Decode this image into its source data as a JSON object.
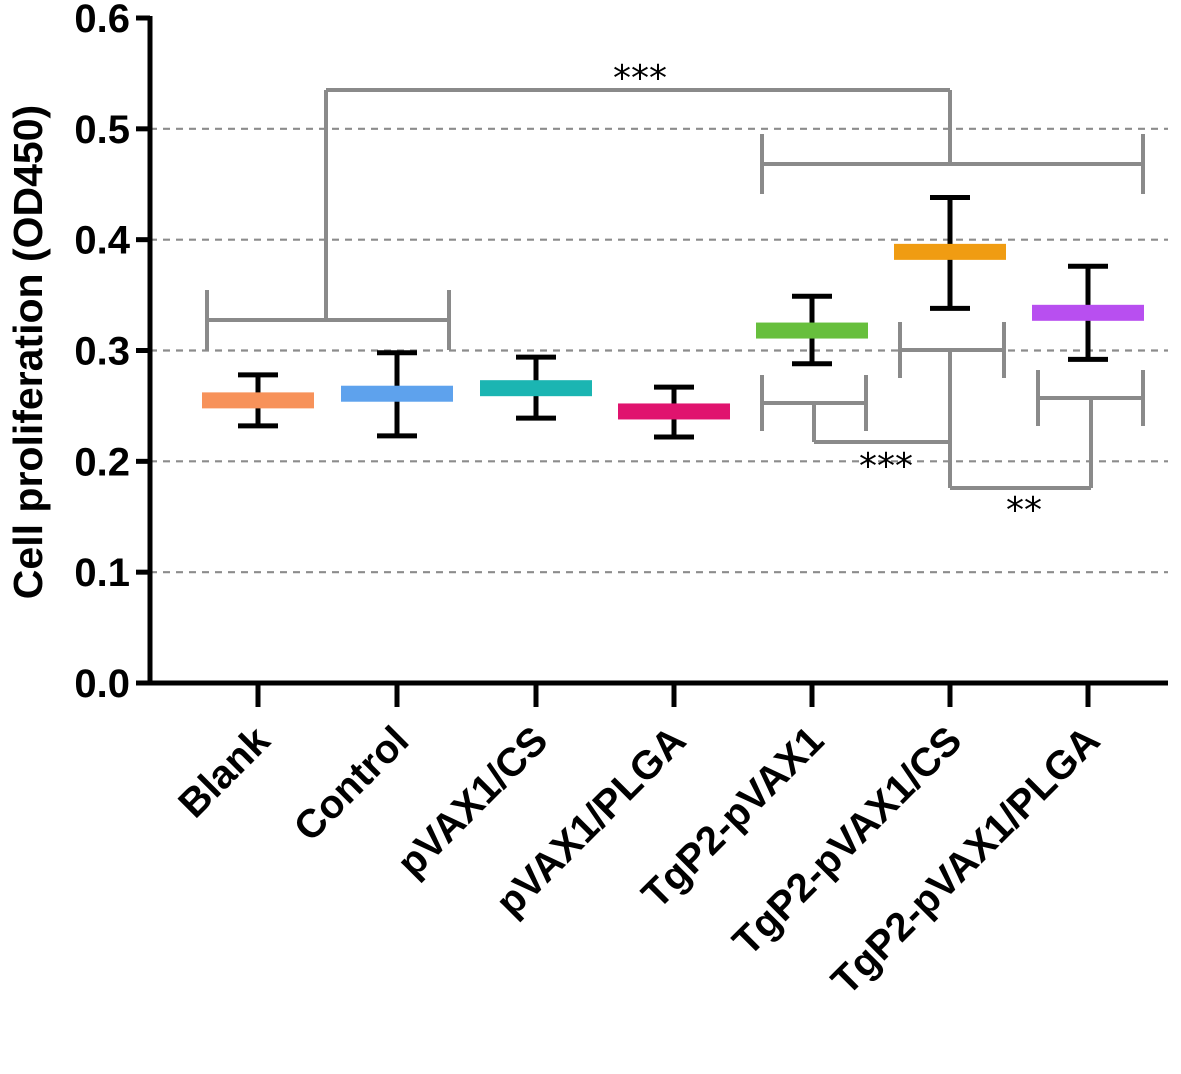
{
  "chart_data": {
    "type": "mean_sd_plot",
    "ylabel": "Cell proliferation (OD450)",
    "xlabel": "",
    "ylim": [
      0.0,
      0.6
    ],
    "yticks": [
      "0.0",
      "0.1",
      "0.2",
      "0.3",
      "0.4",
      "0.5",
      "0.6"
    ],
    "ytick_values": [
      0.0,
      0.1,
      0.2,
      0.3,
      0.4,
      0.5,
      0.6
    ],
    "gridlines": [
      0.1,
      0.2,
      0.3,
      0.4,
      0.5
    ],
    "categories": [
      "Blank",
      "Control",
      "pVAX1/CS",
      "pVAX1/PLGA",
      "TgP2-pVAX1",
      "TgP2-pVAX1/CS",
      "TgP2-pVAX1/PLGA"
    ],
    "means": [
      0.255,
      0.261,
      0.266,
      0.245,
      0.318,
      0.389,
      0.334
    ],
    "err_low": [
      0.232,
      0.223,
      0.239,
      0.222,
      0.288,
      0.338,
      0.292
    ],
    "err_high": [
      0.278,
      0.298,
      0.294,
      0.267,
      0.349,
      0.438,
      0.376
    ],
    "colors": [
      "#f7925a",
      "#5ea2ed",
      "#1bb5b2",
      "#e0136e",
      "#67bf3d",
      "#f09c12",
      "#b84ff0"
    ],
    "significance": [
      {
        "label": "***",
        "text": "***"
      },
      {
        "label": "***",
        "text": "***"
      },
      {
        "label": "**",
        "text": "**"
      }
    ]
  }
}
